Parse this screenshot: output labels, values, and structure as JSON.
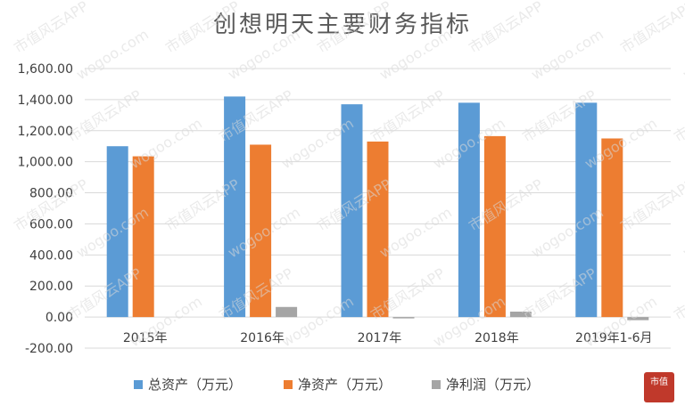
{
  "chart_data": {
    "type": "bar",
    "title": "创想明天主要财务指标",
    "xlabel": "",
    "ylabel": "",
    "categories": [
      "2015年",
      "2016年",
      "2017年",
      "2018年",
      "2019年1-6月"
    ],
    "ylim": [
      -200,
      1600
    ],
    "yticks": [
      "-200.00",
      "0.00",
      "200.00",
      "400.00",
      "600.00",
      "800.00",
      "1,000.00",
      "1,200.00",
      "1,400.00",
      "1,600.00"
    ],
    "grid": true,
    "legend_position": "bottom",
    "series": [
      {
        "name": "总资产（万元）",
        "color": "#5b9bd5",
        "values": [
          1100,
          1420,
          1370,
          1380,
          1380
        ]
      },
      {
        "name": "净资产（万元）",
        "color": "#ed7d31",
        "values": [
          1035,
          1110,
          1130,
          1165,
          1150
        ]
      },
      {
        "name": "净利润（万元）",
        "color": "#a5a5a5",
        "values": [
          0,
          65,
          -5,
          35,
          -20
        ]
      }
    ]
  },
  "watermark": {
    "brand_text": "市值风云APP",
    "site_text": "wogoo.com",
    "seal_text": "市值"
  },
  "colors": {
    "grid": "#d9d9d9",
    "seal": "#c0392b"
  }
}
